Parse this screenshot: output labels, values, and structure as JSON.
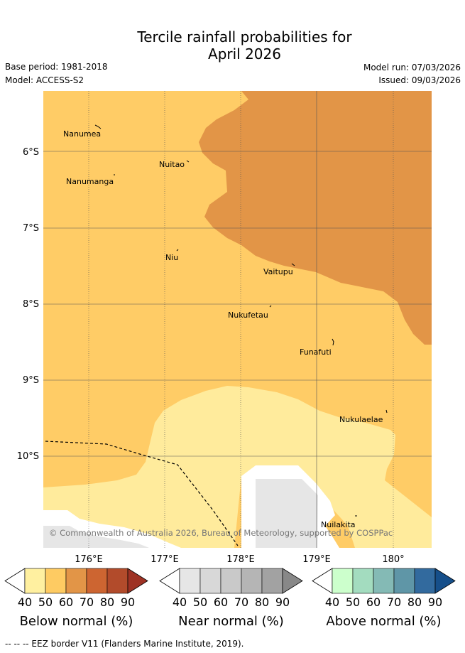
{
  "title_line1": "Tercile rainfall probabilities for",
  "title_line2": "April 2026",
  "base_period": "Base period: 1981-2018",
  "model": "Model: ACCESS-S2",
  "model_run": "Model run: 07/03/2026",
  "issued": "Issued: 09/03/2026",
  "map": {
    "lat_labels": [
      "6°S",
      "7°S",
      "8°S",
      "9°S",
      "10°S"
    ],
    "lon_labels": [
      "176°E",
      "177°E",
      "178°E",
      "179°E",
      "180°"
    ],
    "places": [
      "Nanumea",
      "Nuitao",
      "Nanumanga",
      "Niu",
      "Vaitupu",
      "Nukufetau",
      "Funafuti",
      "Nukulaelae",
      "Nuilakita"
    ],
    "copyright": "© Commonwealth of Australia 2026, Bureau of Meteorology, supported by COSPPac"
  },
  "colorbars": [
    {
      "title": "Below normal (%)",
      "ticks": [
        "40",
        "50",
        "60",
        "70",
        "80",
        "90"
      ],
      "colors": [
        "#fff0a0",
        "#fecb62",
        "#e29547",
        "#cd6531",
        "#b24b2b",
        "#9e3224"
      ]
    },
    {
      "title": "Near normal (%)",
      "ticks": [
        "40",
        "50",
        "60",
        "70",
        "80",
        "90"
      ],
      "colors": [
        "#e6e6e6",
        "#d8d8d8",
        "#c9c9c9",
        "#b5b5b5",
        "#a2a2a2",
        "#888888"
      ]
    },
    {
      "title": "Above normal (%)",
      "ticks": [
        "40",
        "50",
        "60",
        "70",
        "80",
        "90"
      ],
      "colors": [
        "#ccffcc",
        "#a3dcbf",
        "#84bab5",
        "#5f96a7",
        "#326a9e",
        "#164f8a"
      ]
    }
  ],
  "footer": "--  --  -- EEZ border V11 (Flanders Marine Institute, 2019).",
  "colors": {
    "below_40_50": "#ffeb9c",
    "below_50_60": "#ffcc66",
    "below_60_70": "#e29547",
    "near_40_50": "#e6e6e6"
  }
}
